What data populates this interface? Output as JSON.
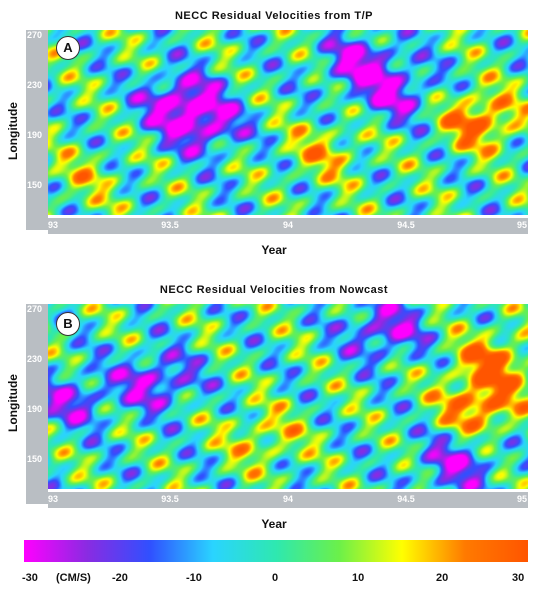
{
  "chart_data": [
    {
      "type": "heatmap",
      "title": "NECC Residual Velocities from T/P",
      "panel_label": "A",
      "xlabel": "Year",
      "ylabel": "Longitude",
      "xlim": [
        93,
        95
      ],
      "ylim": [
        130,
        275
      ],
      "xticks": [
        "93",
        "93.5",
        "94",
        "94.5",
        "95"
      ],
      "yticks": [
        "150",
        "190",
        "230",
        "270"
      ],
      "colorscale": "magenta-blue-cyan-green-yellow-orange",
      "value_range": [
        -30,
        30
      ],
      "features": [
        {
          "x": 93.55,
          "y": 220,
          "value": -28
        },
        {
          "x": 93.65,
          "y": 200,
          "value": -25
        },
        {
          "x": 94.3,
          "y": 250,
          "value": -25
        },
        {
          "x": 94.45,
          "y": 225,
          "value": -22
        },
        {
          "x": 94.8,
          "y": 205,
          "value": 28
        },
        {
          "x": 94.15,
          "y": 180,
          "value": 15
        },
        {
          "x": 93.15,
          "y": 160,
          "value": 10
        }
      ]
    },
    {
      "type": "heatmap",
      "title": "NECC Residual Velocities from Nowcast",
      "panel_label": "B",
      "xlabel": "Year",
      "ylabel": "Longitude",
      "xlim": [
        93,
        95
      ],
      "ylim": [
        130,
        275
      ],
      "xticks": [
        "93",
        "93.5",
        "94",
        "94.5",
        "95"
      ],
      "yticks": [
        "150",
        "190",
        "230",
        "270"
      ],
      "colorscale": "magenta-blue-cyan-green-yellow-orange",
      "value_range": [
        -30,
        30
      ],
      "features": [
        {
          "x": 93.45,
          "y": 215,
          "value": -25
        },
        {
          "x": 94.4,
          "y": 255,
          "value": -25
        },
        {
          "x": 93.1,
          "y": 200,
          "value": -20
        },
        {
          "x": 94.8,
          "y": 195,
          "value": 28
        },
        {
          "x": 94.85,
          "y": 230,
          "value": 25
        },
        {
          "x": 93.9,
          "y": 170,
          "value": 15
        },
        {
          "x": 94.7,
          "y": 150,
          "value": -22
        }
      ]
    }
  ],
  "colorbar": {
    "labels": [
      "-30",
      "(CM/S)",
      "-20",
      "-10",
      "0",
      "10",
      "20",
      "30"
    ],
    "colors": [
      "#ff00ff",
      "#8a2be2",
      "#3050ff",
      "#2ad4ff",
      "#2ee8b0",
      "#6bf04a",
      "#ffff00",
      "#ff7a00",
      "#ff5500"
    ]
  }
}
